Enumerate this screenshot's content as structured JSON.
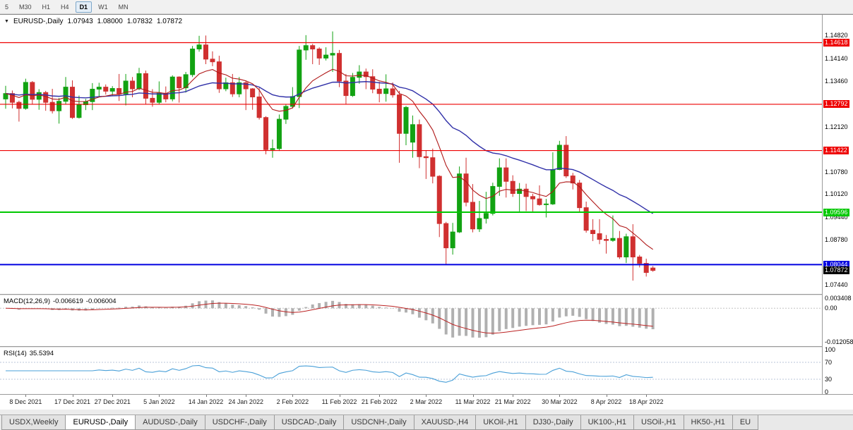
{
  "icons": {
    "chart_marker": "▼"
  },
  "toolbar": {
    "timeframes": [
      {
        "label": "5",
        "active": false
      },
      {
        "label": "M30",
        "active": false
      },
      {
        "label": "H1",
        "active": false
      },
      {
        "label": "H4",
        "active": false
      },
      {
        "label": "D1",
        "active": true
      },
      {
        "label": "W1",
        "active": false
      },
      {
        "label": "MN",
        "active": false
      }
    ]
  },
  "chart": {
    "title": {
      "symbol": "EURUSD-,Daily",
      "open": "1.07943",
      "high": "1.08000",
      "low": "1.07832",
      "close": "1.07872"
    },
    "colors": {
      "bull": "#12a212",
      "bear": "#d03030",
      "ma_fast": "#b01818",
      "ma_slow": "#3030a8",
      "macd_hist": "#b0b0b0",
      "macd_signal": "#bb2222",
      "rsi": "#4aa0d8"
    },
    "axis_ticks": [
      {
        "label": "1.14820",
        "price": 1.1482
      },
      {
        "label": "1.14140",
        "price": 1.1414
      },
      {
        "label": "1.13460",
        "price": 1.1346
      },
      {
        "label": "1.12120",
        "price": 1.1212
      },
      {
        "label": "1.10780",
        "price": 1.1078
      },
      {
        "label": "1.10120",
        "price": 1.1012
      },
      {
        "label": "1.09440",
        "price": 1.0944
      },
      {
        "label": "1.08780",
        "price": 1.0878
      },
      {
        "label": "1.07440",
        "price": 1.0744
      }
    ],
    "current_price": {
      "label": "1.07872",
      "price": 1.07872,
      "box_color": "#000000"
    }
  },
  "macd": {
    "name": "MACD(12,26,9)",
    "main_value": "-0.006619",
    "signal_value": "-0.006004",
    "params": {
      "fast": 12,
      "slow": 26,
      "signal": 9
    },
    "range": [
      -0.0125,
      0.0036
    ],
    "axis": [
      {
        "label": "0.003408",
        "value": 0.003408
      },
      {
        "label": "0.00",
        "value": 0
      },
      {
        "label": "-0.012058",
        "value": -0.012058
      }
    ]
  },
  "rsi": {
    "name": "RSI(14)",
    "value": "35.5394",
    "period": 14,
    "levels": [
      70,
      30
    ],
    "axis": [
      {
        "label": "100",
        "value": 100
      },
      {
        "label": "70",
        "value": 70
      },
      {
        "label": "30",
        "value": 30
      },
      {
        "label": "0",
        "value": 0
      }
    ]
  },
  "tabs": [
    {
      "label": "USDX,Weekly",
      "active": false
    },
    {
      "label": "EURUSD-,Daily",
      "active": true
    },
    {
      "label": "AUDUSD-,Daily",
      "active": false
    },
    {
      "label": "USDCHF-,Daily",
      "active": false
    },
    {
      "label": "USDCAD-,Daily",
      "active": false
    },
    {
      "label": "USDCNH-,Daily",
      "active": false
    },
    {
      "label": "XAUUSD-,H4",
      "active": false
    },
    {
      "label": "UKOil-,H1",
      "active": false
    },
    {
      "label": "DJ30-,Daily",
      "active": false
    },
    {
      "label": "UK100-,H1",
      "active": false
    },
    {
      "label": "USOil-,H1",
      "active": false
    },
    {
      "label": "HK50-,H1",
      "active": false
    },
    {
      "label": "EU",
      "active": false
    }
  ],
  "chart_data": {
    "type": "candlestick",
    "symbol": "EURUSD-",
    "timeframe": "Daily",
    "price_range": [
      1.073,
      1.1515
    ],
    "grid": "off",
    "ohlc": [
      [
        1.1295,
        1.1334,
        1.1266,
        1.1311
      ],
      [
        1.1311,
        1.132,
        1.1267,
        1.1285
      ],
      [
        1.1285,
        1.129,
        1.1228,
        1.1267
      ],
      [
        1.1267,
        1.1355,
        1.1263,
        1.1344
      ],
      [
        1.1344,
        1.1348,
        1.128,
        1.1294
      ],
      [
        1.1294,
        1.1324,
        1.1263,
        1.1314
      ],
      [
        1.1314,
        1.1319,
        1.126,
        1.1285
      ],
      [
        1.1285,
        1.1325,
        1.1252,
        1.126
      ],
      [
        1.126,
        1.1298,
        1.1222,
        1.1288
      ],
      [
        1.1288,
        1.136,
        1.1279,
        1.133
      ],
      [
        1.133,
        1.135,
        1.1236,
        1.124
      ],
      [
        1.124,
        1.1305,
        1.1237,
        1.1278
      ],
      [
        1.1278,
        1.1295,
        1.1262,
        1.1287
      ],
      [
        1.1287,
        1.1342,
        1.1262,
        1.1324
      ],
      [
        1.1324,
        1.1343,
        1.1301,
        1.133
      ],
      [
        1.133,
        1.1338,
        1.1308,
        1.1318
      ],
      [
        1.1318,
        1.1333,
        1.1304,
        1.1326
      ],
      [
        1.1326,
        1.1369,
        1.1289,
        1.131
      ],
      [
        1.131,
        1.1369,
        1.1276,
        1.1348
      ],
      [
        1.1348,
        1.136,
        1.13,
        1.1325
      ],
      [
        1.1325,
        1.1387,
        1.1321,
        1.137
      ],
      [
        1.137,
        1.1379,
        1.1279,
        1.1297
      ],
      [
        1.1297,
        1.1324,
        1.1272,
        1.1285
      ],
      [
        1.1285,
        1.1347,
        1.128,
        1.1312
      ],
      [
        1.1312,
        1.1332,
        1.1285,
        1.1295
      ],
      [
        1.1295,
        1.1365,
        1.1288,
        1.136
      ],
      [
        1.136,
        1.1362,
        1.1284,
        1.1328
      ],
      [
        1.1328,
        1.1375,
        1.1314,
        1.1367
      ],
      [
        1.1367,
        1.1452,
        1.136,
        1.1443
      ],
      [
        1.1443,
        1.1482,
        1.1435,
        1.1455
      ],
      [
        1.1455,
        1.1483,
        1.1398,
        1.1413
      ],
      [
        1.1413,
        1.1436,
        1.1392,
        1.1405
      ],
      [
        1.1405,
        1.1423,
        1.1313,
        1.1325
      ],
      [
        1.1325,
        1.1358,
        1.1318,
        1.1343
      ],
      [
        1.1343,
        1.1369,
        1.1301,
        1.131
      ],
      [
        1.131,
        1.136,
        1.13,
        1.1343
      ],
      [
        1.1343,
        1.1349,
        1.1262,
        1.1325
      ],
      [
        1.1325,
        1.1327,
        1.1263,
        1.1301
      ],
      [
        1.1301,
        1.1328,
        1.1234,
        1.124
      ],
      [
        1.124,
        1.1244,
        1.1131,
        1.1145
      ],
      [
        1.1145,
        1.1175,
        1.1121,
        1.1148
      ],
      [
        1.1148,
        1.1249,
        1.1141,
        1.1235
      ],
      [
        1.1235,
        1.128,
        1.1221,
        1.1273
      ],
      [
        1.1273,
        1.133,
        1.1267,
        1.1302
      ],
      [
        1.1302,
        1.1452,
        1.1268,
        1.144
      ],
      [
        1.144,
        1.1484,
        1.1411,
        1.1453
      ],
      [
        1.1453,
        1.1458,
        1.1398,
        1.1443
      ],
      [
        1.1443,
        1.1448,
        1.1396,
        1.1416
      ],
      [
        1.1416,
        1.1448,
        1.1409,
        1.1425
      ],
      [
        1.1425,
        1.1495,
        1.1375,
        1.143
      ],
      [
        1.143,
        1.144,
        1.133,
        1.1348
      ],
      [
        1.1348,
        1.1369,
        1.1278,
        1.1305
      ],
      [
        1.1305,
        1.1372,
        1.1301,
        1.1359
      ],
      [
        1.1359,
        1.1395,
        1.134,
        1.1375
      ],
      [
        1.1375,
        1.1385,
        1.1324,
        1.1361
      ],
      [
        1.1361,
        1.1383,
        1.1312,
        1.1324
      ],
      [
        1.1324,
        1.1346,
        1.1285,
        1.1311
      ],
      [
        1.1311,
        1.1368,
        1.1287,
        1.1325
      ],
      [
        1.1325,
        1.1344,
        1.1299,
        1.1307
      ],
      [
        1.1307,
        1.1319,
        1.1106,
        1.1193
      ],
      [
        1.1193,
        1.1274,
        1.1158,
        1.127
      ],
      [
        1.1167,
        1.1246,
        1.1121,
        1.1219
      ],
      [
        1.1219,
        1.1234,
        1.109,
        1.1124
      ],
      [
        1.1124,
        1.1143,
        1.1058,
        1.1121
      ],
      [
        1.1121,
        1.1148,
        1.1045,
        1.1066
      ],
      [
        1.1066,
        1.1069,
        1.0886,
        1.0926
      ],
      [
        1.0926,
        1.0931,
        1.0806,
        1.0854
      ],
      [
        1.0854,
        1.0928,
        1.0834,
        1.0901
      ],
      [
        1.0901,
        1.1095,
        1.0898,
        1.1073
      ],
      [
        1.1073,
        1.1121,
        1.0977,
        1.0989
      ],
      [
        1.0989,
        1.1043,
        1.09,
        1.091
      ],
      [
        1.091,
        1.0993,
        1.0901,
        1.0941
      ],
      [
        1.0941,
        1.102,
        1.0926,
        1.0956
      ],
      [
        1.0956,
        1.1047,
        1.095,
        1.1036
      ],
      [
        1.1036,
        1.1119,
        1.1008,
        1.1091
      ],
      [
        1.1091,
        1.1119,
        1.1003,
        1.1051
      ],
      [
        1.1051,
        1.1069,
        1.1005,
        1.1015
      ],
      [
        1.1015,
        1.1046,
        1.0962,
        1.1028
      ],
      [
        1.1028,
        1.1044,
        1.0963,
        1.1006
      ],
      [
        1.1006,
        1.1014,
        1.0962,
        1.0999
      ],
      [
        1.0999,
        1.1039,
        1.0979,
        1.0982
      ],
      [
        1.0982,
        1.0999,
        1.0944,
        1.0984
      ],
      [
        1.0984,
        1.1137,
        1.0981,
        1.1086
      ],
      [
        1.1086,
        1.1171,
        1.1084,
        1.1158
      ],
      [
        1.1158,
        1.1185,
        1.1061,
        1.1067
      ],
      [
        1.1067,
        1.1076,
        1.1027,
        1.1046
      ],
      [
        1.1046,
        1.1055,
        1.096,
        1.0973
      ],
      [
        1.0973,
        1.0991,
        1.0899,
        1.0906
      ],
      [
        1.0906,
        1.0939,
        1.0874,
        1.0896
      ],
      [
        1.0896,
        1.0939,
        1.0865,
        1.0879
      ],
      [
        1.0879,
        1.0892,
        1.0837,
        1.0876
      ],
      [
        1.0876,
        1.095,
        1.0872,
        1.0882
      ],
      [
        1.0882,
        1.0904,
        1.0821,
        1.0827
      ],
      [
        1.0827,
        1.0896,
        1.0809,
        1.0887
      ],
      [
        1.0887,
        1.0924,
        1.0757,
        1.0827
      ],
      [
        1.0827,
        1.0833,
        1.0796,
        1.0808
      ],
      [
        1.0808,
        1.0822,
        1.0769,
        1.0781
      ],
      [
        1.07943,
        1.08,
        1.07832,
        1.07872
      ]
    ],
    "date_ticks": [
      {
        "label": "8 Dec 2021",
        "index": 3
      },
      {
        "label": "17 Dec 2021",
        "index": 10
      },
      {
        "label": "27 Dec 2021",
        "index": 16
      },
      {
        "label": "5 Jan 2022",
        "index": 23
      },
      {
        "label": "14 Jan 2022",
        "index": 30
      },
      {
        "label": "24 Jan 2022",
        "index": 36
      },
      {
        "label": "2 Feb 2022",
        "index": 43
      },
      {
        "label": "11 Feb 2022",
        "index": 50
      },
      {
        "label": "21 Feb 2022",
        "index": 56
      },
      {
        "label": "2 Mar 2022",
        "index": 63
      },
      {
        "label": "11 Mar 2022",
        "index": 70
      },
      {
        "label": "21 Mar 2022",
        "index": 76
      },
      {
        "label": "30 Mar 2022",
        "index": 83
      },
      {
        "label": "8 Apr 2022",
        "index": 90
      },
      {
        "label": "18 Apr 2022",
        "index": 96
      }
    ],
    "overlays": [
      {
        "name": "ma-fast",
        "type": "ema",
        "period": 10,
        "color": "#b01818"
      },
      {
        "name": "ma-slow",
        "type": "ema",
        "period": 30,
        "color": "#3030a8"
      }
    ],
    "hlines": [
      {
        "label": "1.14618",
        "price": 1.14618,
        "color": "#ee0000",
        "width": 1.2
      },
      {
        "label": "1.12792",
        "price": 1.12792,
        "color": "#ee0000",
        "width": 1.2
      },
      {
        "label": "1.11422",
        "price": 1.11422,
        "color": "#ee0000",
        "width": 1.2
      },
      {
        "label": "1.09596",
        "price": 1.09596,
        "color": "#00c800",
        "width": 2
      },
      {
        "label": "1.08044",
        "price": 1.08044,
        "color": "#0000e0",
        "width": 2
      }
    ]
  }
}
